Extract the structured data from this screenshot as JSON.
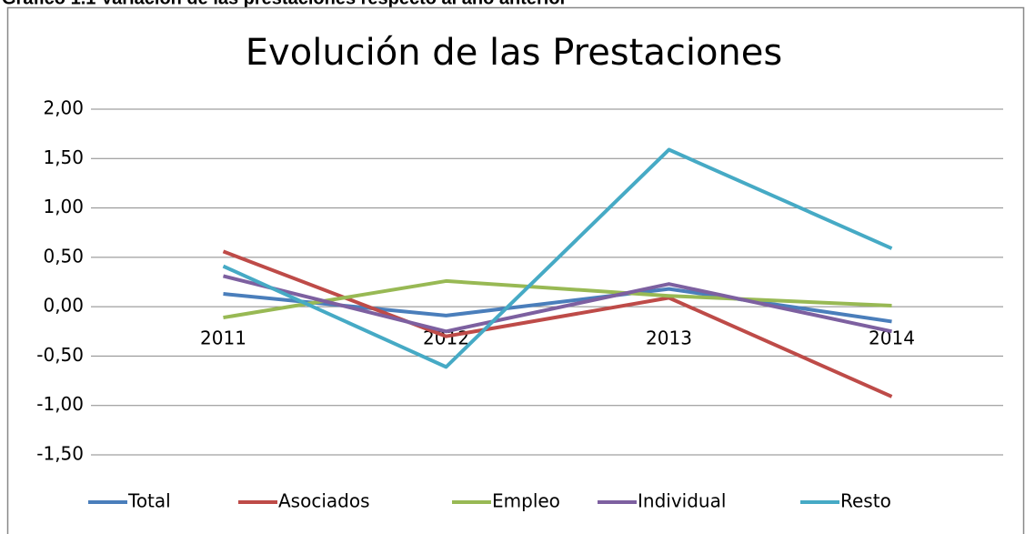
{
  "caption": "Gráfico 1.1 Variación de las prestaciones respecto al año anterior",
  "chart_data": {
    "type": "line",
    "title": "Evolución de las Prestaciones",
    "categories": [
      "2011",
      "2012",
      "2013",
      "2014"
    ],
    "series": [
      {
        "name": "Total",
        "color": "#4a7ebb",
        "values": [
          0.13,
          -0.09,
          0.18,
          -0.15
        ]
      },
      {
        "name": "Asociados",
        "color": "#be4b48",
        "values": [
          0.56,
          -0.3,
          0.09,
          -0.91
        ]
      },
      {
        "name": "Empleo",
        "color": "#98b954",
        "values": [
          -0.11,
          0.26,
          0.11,
          0.01
        ]
      },
      {
        "name": "Individual",
        "color": "#7d60a0",
        "values": [
          0.31,
          -0.25,
          0.23,
          -0.25
        ]
      },
      {
        "name": "Resto",
        "color": "#46aac5",
        "values": [
          0.41,
          -0.61,
          1.59,
          0.59
        ]
      }
    ],
    "ylim": [
      -1.5,
      2.0
    ],
    "yticks": [
      {
        "value": 2.0,
        "label": "2,00"
      },
      {
        "value": 1.5,
        "label": "1,50"
      },
      {
        "value": 1.0,
        "label": "1,00"
      },
      {
        "value": 0.5,
        "label": "0,50"
      },
      {
        "value": 0,
        "label": "0,00"
      },
      {
        "value": -0.5,
        "label": "-0,50"
      },
      {
        "value": -1.0,
        "label": "-1,00"
      },
      {
        "value": -1.5,
        "label": "-1,50"
      }
    ],
    "grid": true,
    "legend": "bottom"
  }
}
